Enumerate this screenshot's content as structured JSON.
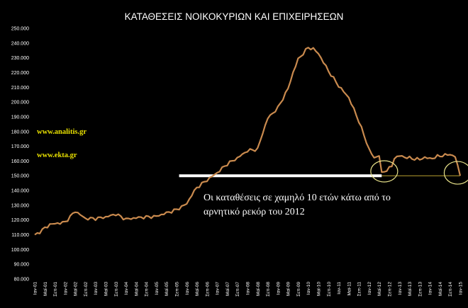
{
  "chart_data": {
    "type": "line",
    "title": "ΚΑΤΑΘΕΣΕΙΣ ΝΟΙΚΟΚΥΡΙΩΝ ΚΑΙ ΕΠΙΧΕΙΡΗΣΕΩΝ",
    "ylim": [
      80000,
      250000
    ],
    "ytick_step": 10000,
    "yticks": [
      "80.000",
      "90.000",
      "100.000",
      "110.000",
      "120.000",
      "130.000",
      "140.000",
      "150.000",
      "160.000",
      "170.000",
      "180.000",
      "190.000",
      "200.000",
      "210.000",
      "220.000",
      "230.000",
      "240.000",
      "250.000"
    ],
    "xticks": [
      "Ιαν-01",
      "Μαϊ-01",
      "Σεπ-01",
      "Ιαν-02",
      "Μαϊ-02",
      "Σεπ-02",
      "Ιαν-03",
      "Μαϊ-03",
      "Σεπ-03",
      "Ιαν-04",
      "Μαϊ-04",
      "Σεπ-04",
      "Ιαν-05",
      "Μαϊ-05",
      "Σεπ-05",
      "Ιαν-06",
      "Μαϊ-06",
      "Σεπ-06",
      "Ιαν-07",
      "Μαϊ-07",
      "Σεπ-07",
      "Ιαν-08",
      "Μαϊ-08",
      "Σεπ-08",
      "Ιαν-09",
      "Μαϊ-09",
      "Σεπ-09",
      "Ιαν-10",
      "Μαϊ-10",
      "Σεπ-10",
      "Ιαν-11",
      "Μαϊ-11",
      "Σεπ-11",
      "Ιαν-12",
      "Μαϊ-12",
      "Σεπ-12",
      "Ιαν-13",
      "Μαϊ-13",
      "Σεπ-13",
      "Ιαν-14",
      "Μαϊ-14",
      "Σεπ-14",
      "Ιαν-15"
    ],
    "x_anchor_months": [
      0,
      6,
      12,
      16,
      20,
      24,
      28,
      32,
      36,
      40,
      48,
      56,
      60,
      62,
      64,
      68,
      72,
      76,
      80,
      84,
      88,
      90,
      92,
      96,
      100,
      102,
      104,
      106,
      108,
      110,
      112,
      116,
      120,
      124,
      128,
      132,
      134,
      136,
      137,
      138,
      140,
      141,
      142,
      144,
      148,
      152,
      154,
      156,
      160,
      164,
      166,
      168
    ],
    "series": [
      {
        "values": [
          109500,
          117000,
          118500,
          126000,
          121000,
          121000,
          122000,
          124000,
          120500,
          121500,
          122500,
          127000,
          131000,
          137000,
          142000,
          147000,
          152000,
          158000,
          162000,
          167000,
          168000,
          179000,
          189000,
          196000,
          209000,
          220000,
          229000,
          233000,
          237000,
          236000,
          233000,
          221000,
          211000,
          203000,
          187000,
          168000,
          162000,
          164000,
          151500,
          153000,
          155000,
          156500,
          162000,
          163500,
          162000,
          161000,
          162500,
          161500,
          163500,
          164500,
          163000,
          150000
        ]
      }
    ],
    "line_color": "#c98a4e",
    "reference_line": {
      "value": 150000,
      "from_month": 57,
      "to_month": 137,
      "color": "#ffffff"
    },
    "thin_line": {
      "value": 150000,
      "color": "#b8a030"
    },
    "circle_color": "#e8e28a",
    "annotation": [
      "Οι καταθέσεις σε χαμηλό 10 ετών κάτω από το",
      "αρνητικό ρεκόρ του 2012"
    ],
    "watermarks": [
      "www.analitis.gr",
      "www.ekta.gr"
    ]
  }
}
